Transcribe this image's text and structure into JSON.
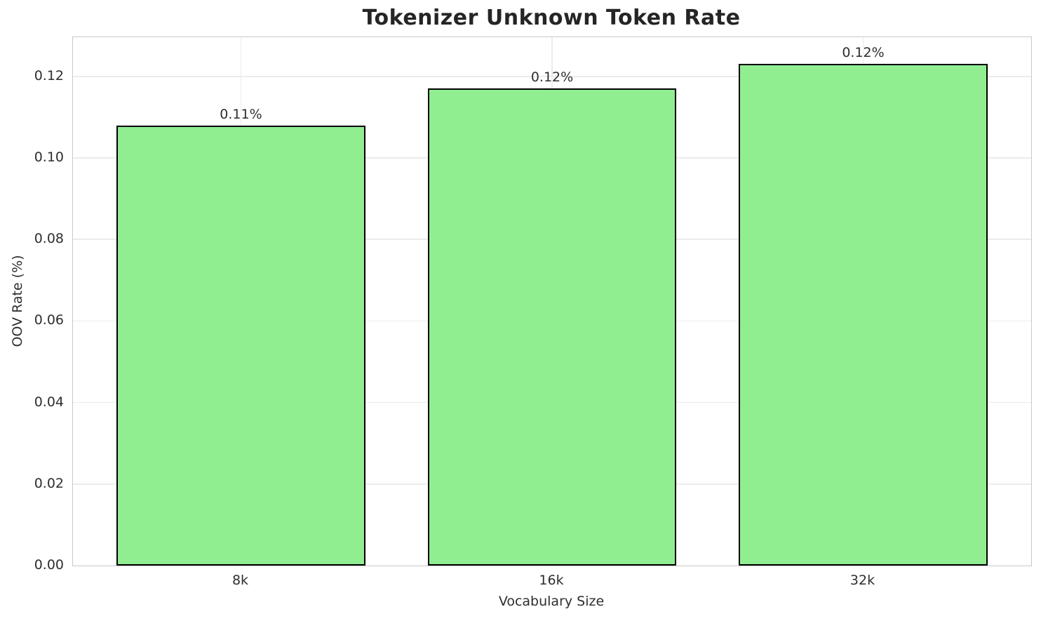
{
  "chart_data": {
    "type": "bar",
    "title": "Tokenizer Unknown Token Rate",
    "xlabel": "Vocabulary Size",
    "ylabel": "OOV Rate (%)",
    "categories": [
      "8k",
      "16k",
      "32k"
    ],
    "values": [
      0.108,
      0.117,
      0.123
    ],
    "bar_labels": [
      "0.11%",
      "0.12%",
      "0.12%"
    ],
    "ytick_values": [
      0.0,
      0.02,
      0.04,
      0.06,
      0.08,
      0.1,
      0.12
    ],
    "ytick_labels": [
      "0.00",
      "0.02",
      "0.04",
      "0.06",
      "0.08",
      "0.10",
      "0.12"
    ],
    "ylim": [
      0,
      0.1296
    ],
    "grid": true,
    "legend": false,
    "colors": {
      "bar_fill": "#90EE90",
      "bar_edge": "#000000",
      "grid_line": "#ebebeb",
      "spine": "#c9c9c9",
      "title_text": "#252525",
      "tick_text": "#2e2e2e",
      "background": "#ffffff"
    }
  }
}
